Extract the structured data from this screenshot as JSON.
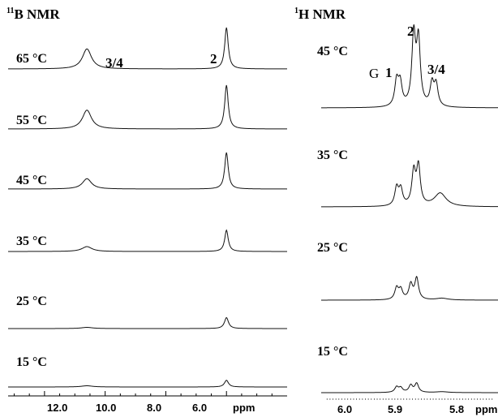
{
  "chart_data": [
    {
      "type": "line",
      "title_sup": "11",
      "title": "B NMR",
      "xlabel": "ppm",
      "x_ticks": [
        "12.0",
        "10.0",
        "8.0",
        "6.0"
      ],
      "xlim": [
        13.2,
        4.0
      ],
      "x_reversed": true,
      "peaks": [
        {
          "label": "3/4",
          "position_ppm": 10.6
        },
        {
          "label": "2",
          "position_ppm": 6.0
        }
      ],
      "series": [
        {
          "name": "65 °C",
          "peak_heights": [
            0.33,
            0.68
          ],
          "peak_widths_ppm": [
            0.18,
            0.07
          ]
        },
        {
          "name": "55 °C",
          "peak_heights": [
            0.31,
            0.72
          ],
          "peak_widths_ppm": [
            0.18,
            0.07
          ]
        },
        {
          "name": "45 °C",
          "peak_heights": [
            0.17,
            0.6
          ],
          "peak_widths_ppm": [
            0.18,
            0.07
          ]
        },
        {
          "name": "35 °C",
          "peak_heights": [
            0.08,
            0.35
          ],
          "peak_widths_ppm": [
            0.2,
            0.07
          ]
        },
        {
          "name": "25 °C",
          "peak_heights": [
            0.02,
            0.18
          ],
          "peak_widths_ppm": [
            0.22,
            0.08
          ]
        },
        {
          "name": "15 °C",
          "peak_heights": [
            0.02,
            0.11
          ],
          "peak_widths_ppm": [
            0.22,
            0.08
          ]
        }
      ]
    },
    {
      "type": "line",
      "title_sup": "1",
      "title": "H NMR",
      "xlabel": "ppm",
      "x_ticks": [
        "6.0",
        "5.9",
        "5.8"
      ],
      "xlim": [
        6.05,
        5.75
      ],
      "x_reversed": true,
      "peaks": [
        {
          "label": "G",
          "position_ppm": 5.93
        },
        {
          "label": "1",
          "position_ppm": 5.92
        },
        {
          "label": "2",
          "position_ppm": 5.885
        },
        {
          "label": "3/4",
          "position_ppm": 5.865
        }
      ],
      "series": [
        {
          "name": "45 °C",
          "peak_heights": [
            0.28,
            0.25,
            0.78,
            0.72,
            0.25,
            0.24
          ],
          "peak_positions_ppm": [
            5.922,
            5.916,
            5.893,
            5.885,
            5.862,
            5.855
          ]
        },
        {
          "name": "35 °C",
          "peak_heights": [
            0.2,
            0.18,
            0.37,
            0.43,
            0.15
          ],
          "peak_positions_ppm": [
            5.922,
            5.915,
            5.893,
            5.885,
            5.848
          ]
        },
        {
          "name": "25 °C",
          "peak_heights": [
            0.13,
            0.11,
            0.17,
            0.24,
            0.02
          ],
          "peak_positions_ppm": [
            5.922,
            5.915,
            5.898,
            5.888,
            5.845
          ]
        },
        {
          "name": "15 °C",
          "peak_heights": [
            0.06,
            0.05,
            0.08,
            0.1,
            0.01
          ],
          "peak_positions_ppm": [
            5.922,
            5.915,
            5.898,
            5.888,
            5.845
          ]
        }
      ]
    }
  ]
}
